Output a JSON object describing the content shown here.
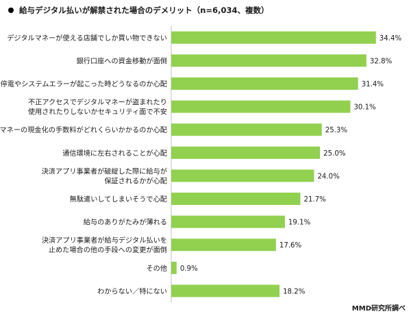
{
  "title": "給与デジタル払いが解禁された場合のデメリット（n=6,034、複数）",
  "credit": "MMD研究所調べ",
  "colors": {
    "bar": "#92d050",
    "axis": "#bfbfbf",
    "text": "#1a1a1a"
  },
  "chart_data": {
    "type": "bar",
    "orientation": "horizontal",
    "title": "給与デジタル払いが解禁された場合のデメリット（n=6,034、複数）",
    "unit": "%",
    "xlim": [
      0,
      35
    ],
    "categories": [
      [
        "デジタルマネーが使える店舗でしか買い物できない"
      ],
      [
        "銀行口座への資金移動が面倒"
      ],
      [
        "停電やシステムエラーが起こった時どうなるのか心配"
      ],
      [
        "不正アクセスでデジタルマネーが盗まれたり",
        "使用されたりしないかセキュリティ面で不安"
      ],
      [
        "デジタルマネーの現金化の手数料がどれくらいかかるのか心配"
      ],
      [
        "通信環境に左右されることが心配"
      ],
      [
        "決済アプリ事業者が破綻した際に給与が",
        "保証されるかが心配"
      ],
      [
        "無駄遣いしてしまいそうで心配"
      ],
      [
        "給与のありがたみが薄れる"
      ],
      [
        "決済アプリ事業者が給与デジタル払いを",
        "止めた場合の他の手段への変更が面倒"
      ],
      [
        "その他"
      ],
      [
        "わからない／特にない"
      ]
    ],
    "value_labels": [
      "34.4%",
      "32.8%",
      "31.4%",
      "30.1%",
      "25.3%",
      "25.0%",
      "24.0%",
      "21.7%",
      "19.1%",
      "17.6%",
      "0.9%",
      "18.2%"
    ],
    "values": [
      34.4,
      32.8,
      31.4,
      30.1,
      25.3,
      25.0,
      24.0,
      21.7,
      19.1,
      17.6,
      0.9,
      18.2
    ]
  }
}
